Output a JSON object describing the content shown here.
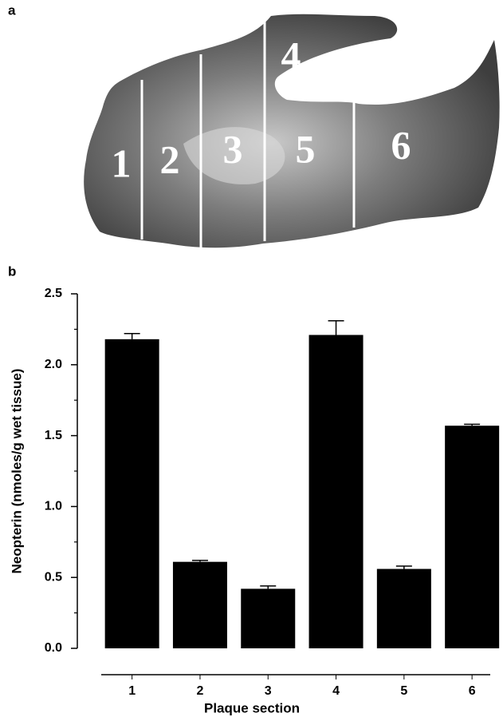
{
  "panel_a": {
    "label": "a",
    "section_labels": [
      "1",
      "2",
      "3",
      "4",
      "5",
      "6"
    ]
  },
  "chart_data": {
    "type": "bar",
    "panel_label": "b",
    "x_label": "Plaque section",
    "y_label": "Neopterin (nmoles/g wet tissue)",
    "categories": [
      "1",
      "2",
      "3",
      "4",
      "5",
      "6"
    ],
    "values": [
      2.18,
      0.61,
      0.42,
      2.21,
      0.56,
      1.57
    ],
    "errors": [
      0.04,
      0.01,
      0.02,
      0.1,
      0.02,
      0.01
    ],
    "color": "#000000",
    "ylim": [
      0,
      2.5
    ],
    "yticks": [
      {
        "value": 0,
        "label": "0.0"
      },
      0.5,
      {
        "value": 1,
        "label": "1.0"
      },
      1.5,
      {
        "value": 2,
        "label": "2.0"
      },
      2.5
    ],
    "minor_yticks": [
      0.25,
      0.75,
      1.25,
      1.75,
      2.25
    ]
  }
}
